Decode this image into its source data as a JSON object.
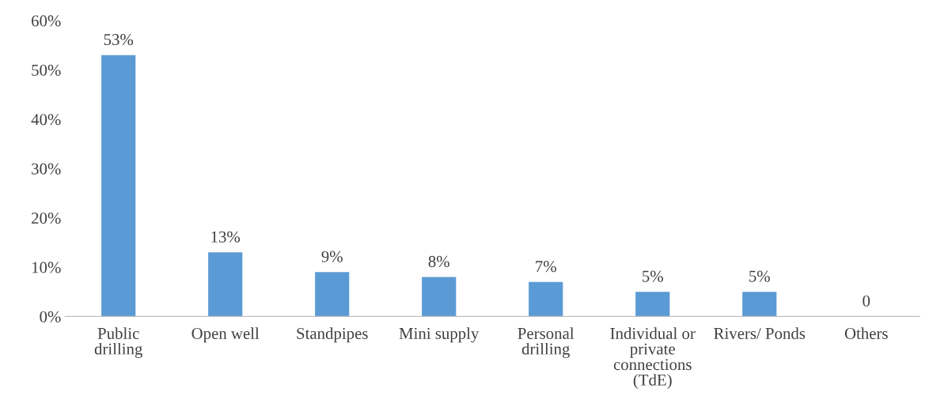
{
  "chart_data": {
    "type": "bar",
    "categories": [
      "Public\ndrilling",
      "Open well",
      "Standpipes",
      "Mini supply",
      "Personal\ndrilling",
      "Individual or\nprivate\nconnections\n(TdE)",
      "Rivers/ Ponds",
      "Others"
    ],
    "values": [
      53,
      13,
      9,
      8,
      7,
      5,
      5,
      0
    ],
    "value_labels": [
      "53%",
      "13%",
      "9%",
      "8%",
      "7%",
      "5%",
      "5%",
      "0"
    ],
    "color": "#5b9bd5",
    "ylim": [
      0,
      60
    ],
    "yticks": [
      {
        "value": 0,
        "label": "0%"
      },
      {
        "value": 10,
        "label": "10%"
      },
      {
        "value": 20,
        "label": "20%"
      },
      {
        "value": 30,
        "label": "30%"
      },
      {
        "value": 40,
        "label": "40%"
      },
      {
        "value": 50,
        "label": "50%"
      },
      {
        "value": 60,
        "label": "60%"
      }
    ],
    "grid": false,
    "legend": false
  }
}
